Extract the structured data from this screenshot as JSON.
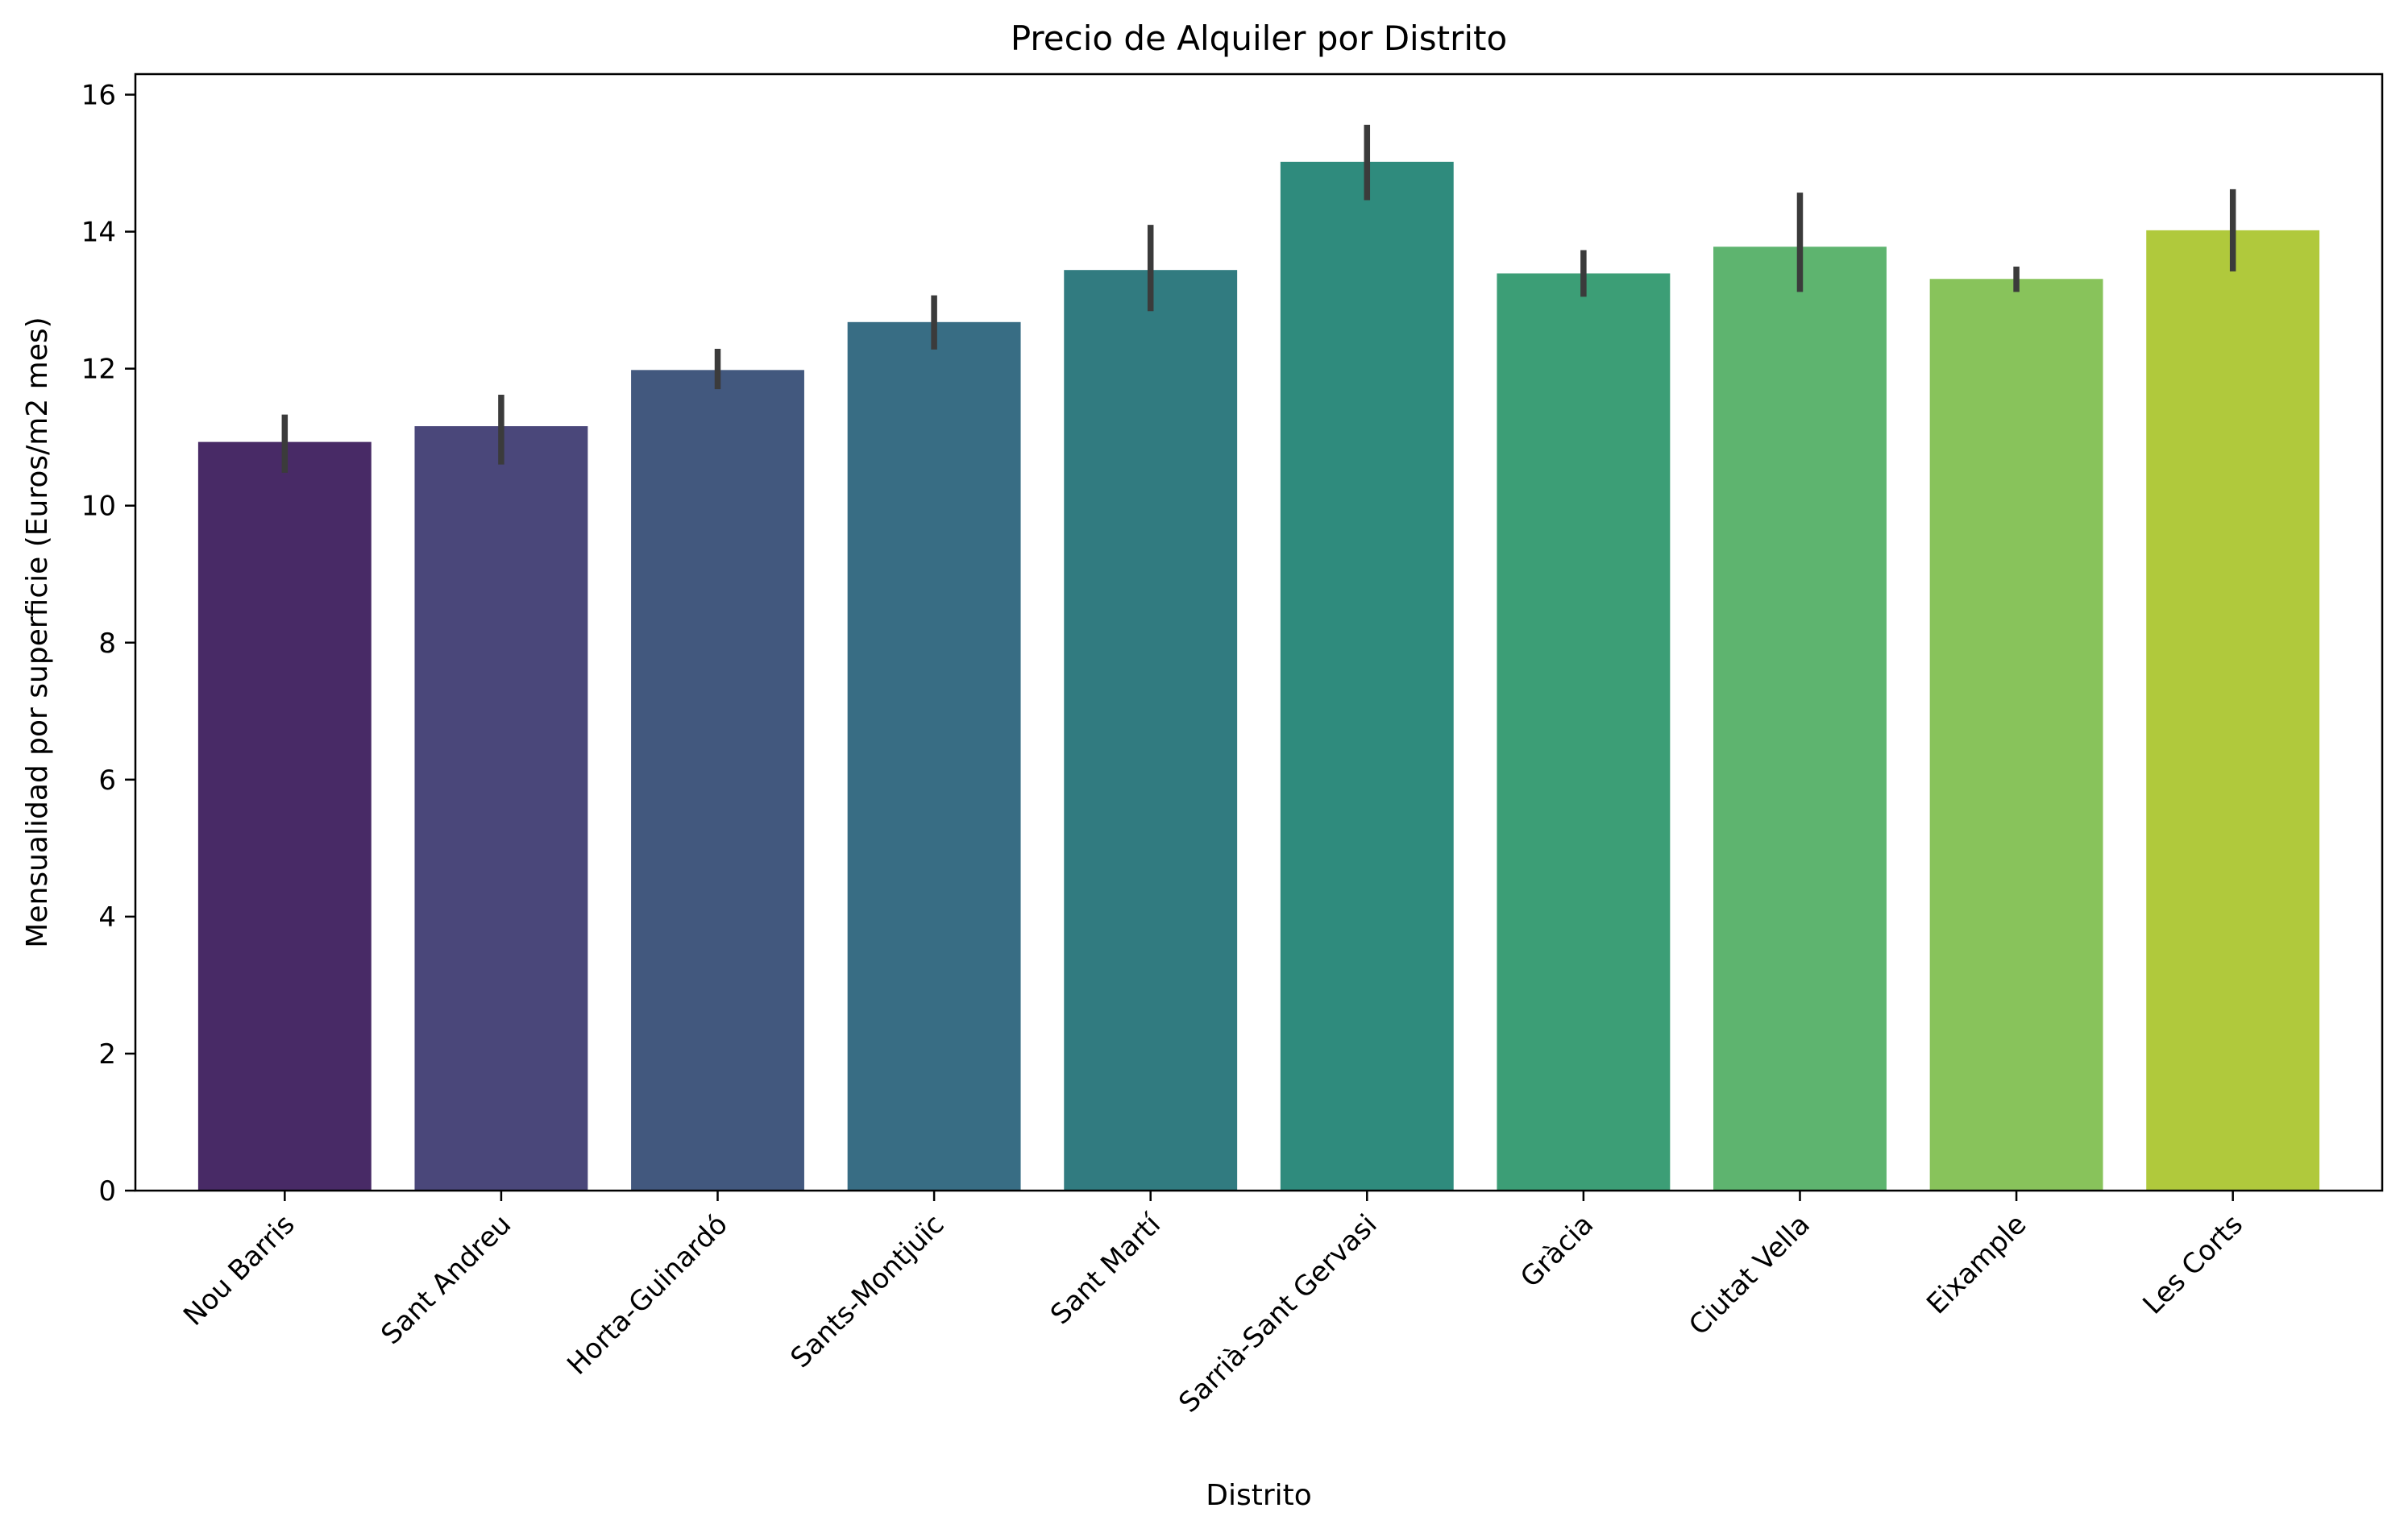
{
  "chart_data": {
    "type": "bar",
    "title": "Precio de Alquiler por Distrito",
    "xlabel": "Distrito",
    "ylabel": "Mensualidad por superficie (Euros/m2 mes)",
    "ylim": [
      0,
      16.3
    ],
    "yticks": [
      0,
      2,
      4,
      6,
      8,
      10,
      12,
      14,
      16
    ],
    "grid": false,
    "legend": "none",
    "categories": [
      "Nou Barris",
      "Sant Andreu",
      "Horta-Guinardó",
      "Sants-Montjuïc",
      "Sant Martí",
      "Sarrià-Sant Gervasi",
      "Gràcia",
      "Ciutat Vella",
      "Eixample",
      "Les Corts"
    ],
    "values": [
      10.93,
      11.16,
      11.98,
      12.68,
      13.44,
      15.02,
      13.39,
      13.78,
      13.31,
      14.02
    ],
    "error_low": [
      10.48,
      10.6,
      11.7,
      12.28,
      12.84,
      14.46,
      13.05,
      13.12,
      13.12,
      13.42
    ],
    "error_high": [
      11.33,
      11.62,
      12.29,
      13.07,
      14.1,
      15.56,
      13.73,
      14.57,
      13.49,
      14.62
    ],
    "colors": [
      "#482a66",
      "#4a477a",
      "#42587e",
      "#386d84",
      "#317b80",
      "#2f8b7d",
      "#3c9e76",
      "#5eb46f",
      "#88c35b",
      "#b0c93c"
    ],
    "error_color": "#3b3b3b",
    "axis_color": "#000000"
  }
}
